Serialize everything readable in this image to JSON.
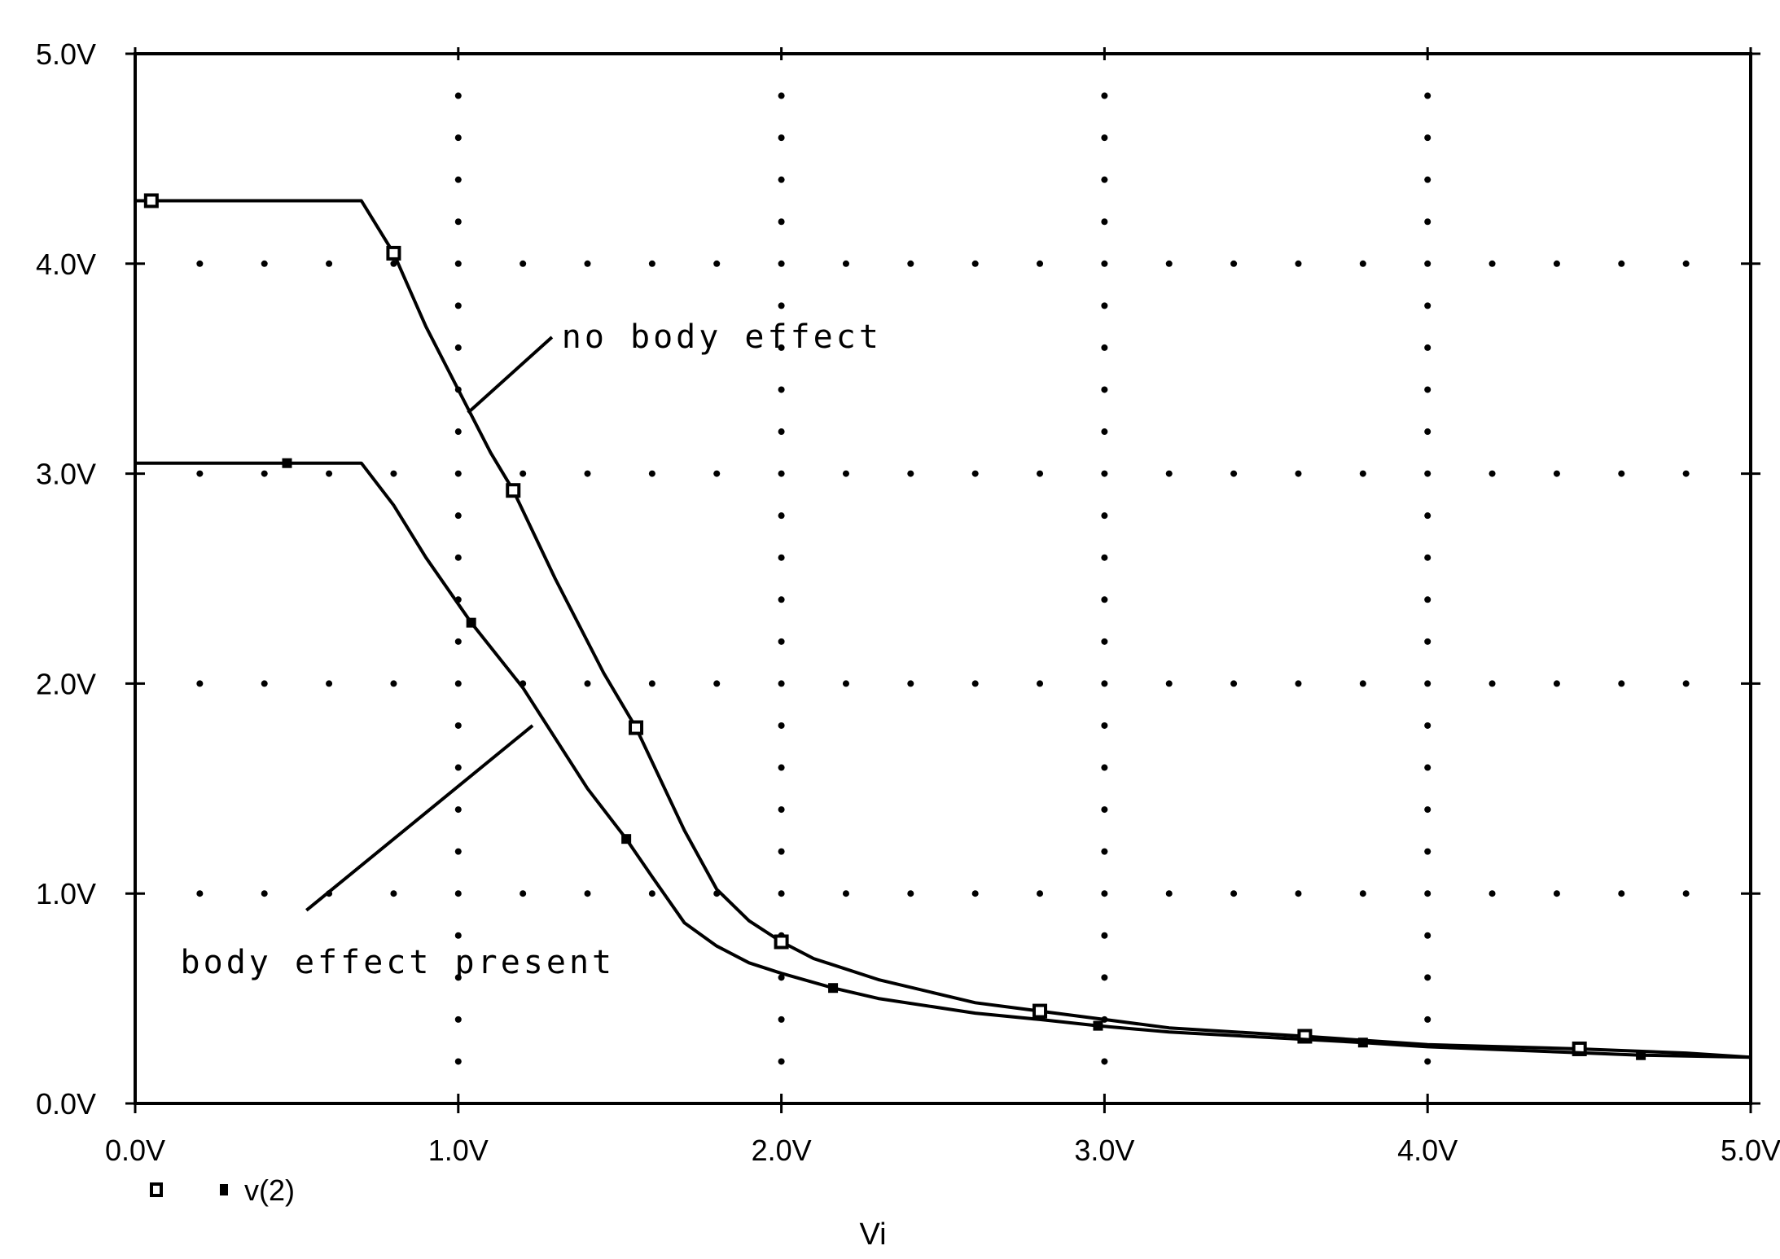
{
  "chart_data": {
    "type": "line",
    "title": "",
    "xlabel": "Vi",
    "ylabel": "",
    "xlim": [
      0,
      5
    ],
    "ylim": [
      0,
      5
    ],
    "grid": "dotted",
    "x_ticks": [
      "0.0V",
      "1.0V",
      "2.0V",
      "3.0V",
      "4.0V",
      "5.0V"
    ],
    "y_ticks": [
      "0.0V",
      "1.0V",
      "2.0V",
      "3.0V",
      "4.0V",
      "5.0V"
    ],
    "legend": {
      "position": "bottom-left",
      "entries": [
        {
          "marker": "open-square",
          "label": ""
        },
        {
          "marker": "filled-square",
          "label": "v(2)"
        }
      ]
    },
    "series": [
      {
        "name": "no body effect",
        "marker": "open-square",
        "x": [
          0.0,
          0.05,
          0.7,
          0.8,
          0.9,
          1.0,
          1.1,
          1.17,
          1.3,
          1.45,
          1.55,
          1.7,
          1.8,
          1.9,
          2.0,
          2.1,
          2.3,
          2.6,
          2.8,
          3.0,
          3.2,
          3.62,
          4.0,
          4.47,
          4.8,
          5.0
        ],
        "y": [
          4.3,
          4.3,
          4.3,
          4.05,
          3.7,
          3.4,
          3.1,
          2.92,
          2.5,
          2.05,
          1.79,
          1.3,
          1.02,
          0.87,
          0.77,
          0.69,
          0.59,
          0.48,
          0.44,
          0.4,
          0.36,
          0.32,
          0.28,
          0.26,
          0.24,
          0.22
        ],
        "marker_x": [
          0.05,
          0.8,
          1.17,
          1.55,
          2.0,
          2.8,
          3.62,
          4.47
        ],
        "marker_y": [
          4.3,
          4.05,
          2.92,
          1.79,
          0.77,
          0.44,
          0.32,
          0.26
        ]
      },
      {
        "name": "body effect present",
        "marker": "filled-square",
        "x": [
          0.0,
          0.47,
          0.7,
          0.8,
          0.9,
          1.04,
          1.2,
          1.4,
          1.52,
          1.6,
          1.7,
          1.8,
          1.9,
          2.0,
          2.16,
          2.3,
          2.6,
          2.8,
          2.98,
          3.2,
          3.8,
          4.0,
          4.66,
          5.0
        ],
        "y": [
          3.05,
          3.05,
          3.05,
          2.85,
          2.6,
          2.29,
          1.98,
          1.5,
          1.26,
          1.08,
          0.86,
          0.75,
          0.67,
          0.62,
          0.55,
          0.5,
          0.43,
          0.4,
          0.37,
          0.34,
          0.29,
          0.27,
          0.23,
          0.22
        ],
        "marker_x": [
          0.47,
          1.04,
          1.52,
          2.16,
          2.98,
          3.8,
          4.66
        ],
        "marker_y": [
          3.05,
          2.29,
          1.26,
          0.55,
          0.37,
          0.29,
          0.23
        ]
      }
    ],
    "annotations": [
      {
        "text": "no body effect",
        "x": 1.32,
        "y": 3.6,
        "line_from": [
          1.29,
          3.65
        ],
        "line_to": [
          1.03,
          3.29
        ]
      },
      {
        "text": "body effect present",
        "x": 0.14,
        "y": 0.62,
        "line_from": [
          0.53,
          0.92
        ],
        "line_to": [
          1.23,
          1.8
        ]
      }
    ]
  }
}
